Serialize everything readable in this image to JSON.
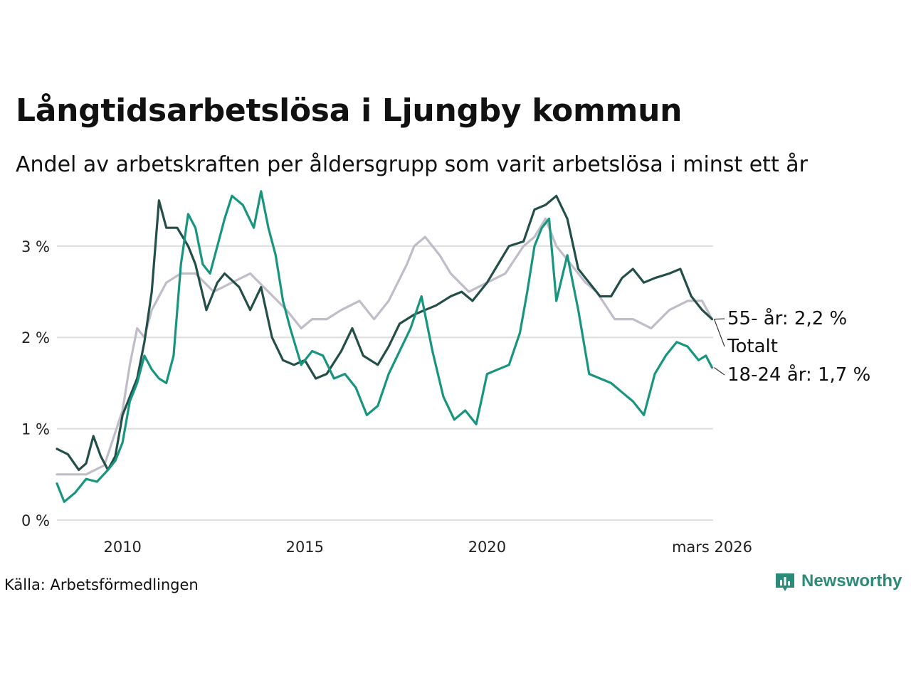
{
  "title": "Långtidsarbetslösa i Ljungby kommun",
  "subtitle": "Andel av arbetskraften per åldersgrupp som varit arbetslösa i minst ett år",
  "source": "Källa: Arbetsförmedlingen",
  "brand": {
    "name": "Newsworthy",
    "icon": "bar-chart-logo-icon",
    "color": "#2a8c78"
  },
  "colors": {
    "Totalt": "#234f48",
    "55-": "#c0bcc8",
    "18-24": "#18957f",
    "grid": "#dddddd"
  },
  "chart_data": {
    "type": "line",
    "xlabel": "",
    "ylabel": "",
    "xlim": [
      2008.2,
      2026.2
    ],
    "ylim": [
      0,
      3.7
    ],
    "y_ticks": [
      {
        "value": 0,
        "label": "0 %"
      },
      {
        "value": 1,
        "label": "1 %"
      },
      {
        "value": 2,
        "label": "2 %"
      },
      {
        "value": 3,
        "label": "3 %"
      }
    ],
    "x_ticks": [
      {
        "value": 2010,
        "label": "2010"
      },
      {
        "value": 2015,
        "label": "2015"
      },
      {
        "value": 2020,
        "label": "2020"
      },
      {
        "value": 2026.17,
        "label": "mars 2026"
      }
    ],
    "grid": true,
    "series": [
      {
        "name": "55- år",
        "key": "55-",
        "end_label": "55- år: 2,2 %",
        "x": [
          2008.2,
          2009.0,
          2009.5,
          2010.0,
          2010.2,
          2010.4,
          2010.6,
          2010.8,
          2011.2,
          2011.6,
          2012.0,
          2012.5,
          2013.0,
          2013.5,
          2014.0,
          2014.5,
          2014.9,
          2015.2,
          2015.6,
          2016.0,
          2016.5,
          2016.9,
          2017.3,
          2017.8,
          2018.0,
          2018.3,
          2018.7,
          2019.0,
          2019.5,
          2020.0,
          2020.5,
          2021.0,
          2021.3,
          2021.6,
          2021.9,
          2022.3,
          2022.7,
          2023.0,
          2023.5,
          2024.0,
          2024.5,
          2025.0,
          2025.5,
          2025.9,
          2026.17
        ],
        "y": [
          0.5,
          0.5,
          0.6,
          1.2,
          1.7,
          2.1,
          2.0,
          2.3,
          2.6,
          2.7,
          2.7,
          2.5,
          2.6,
          2.7,
          2.5,
          2.3,
          2.1,
          2.2,
          2.2,
          2.3,
          2.4,
          2.2,
          2.4,
          2.8,
          3.0,
          3.1,
          2.9,
          2.7,
          2.5,
          2.6,
          2.7,
          3.0,
          3.1,
          3.3,
          3.0,
          2.8,
          2.6,
          2.5,
          2.2,
          2.2,
          2.1,
          2.3,
          2.4,
          2.4,
          2.2
        ]
      },
      {
        "name": "Totalt",
        "key": "Totalt",
        "end_label": "Totalt",
        "x": [
          2008.2,
          2008.5,
          2008.8,
          2009.0,
          2009.2,
          2009.4,
          2009.6,
          2009.8,
          2010.0,
          2010.2,
          2010.4,
          2010.6,
          2010.8,
          2011.0,
          2011.2,
          2011.5,
          2011.8,
          2012.0,
          2012.3,
          2012.6,
          2012.8,
          2013.2,
          2013.5,
          2013.8,
          2014.1,
          2014.4,
          2014.7,
          2015.0,
          2015.3,
          2015.6,
          2016.0,
          2016.3,
          2016.6,
          2017.0,
          2017.3,
          2017.6,
          2018.0,
          2018.3,
          2018.6,
          2019.0,
          2019.3,
          2019.6,
          2020.0,
          2020.3,
          2020.6,
          2021.0,
          2021.3,
          2021.6,
          2021.9,
          2022.2,
          2022.5,
          2022.8,
          2023.1,
          2023.4,
          2023.7,
          2024.0,
          2024.3,
          2024.6,
          2025.0,
          2025.3,
          2025.6,
          2025.9,
          2026.17
        ],
        "y": [
          0.78,
          0.72,
          0.55,
          0.62,
          0.92,
          0.7,
          0.55,
          0.7,
          1.15,
          1.35,
          1.55,
          1.95,
          2.5,
          3.5,
          3.2,
          3.2,
          3.0,
          2.8,
          2.3,
          2.6,
          2.7,
          2.55,
          2.3,
          2.55,
          2.0,
          1.75,
          1.7,
          1.75,
          1.55,
          1.6,
          1.85,
          2.1,
          1.8,
          1.7,
          1.9,
          2.15,
          2.25,
          2.3,
          2.35,
          2.45,
          2.5,
          2.4,
          2.6,
          2.8,
          3.0,
          3.05,
          3.4,
          3.45,
          3.55,
          3.3,
          2.75,
          2.6,
          2.45,
          2.45,
          2.65,
          2.75,
          2.6,
          2.65,
          2.7,
          2.75,
          2.45,
          2.3,
          2.2
        ]
      },
      {
        "name": "18-24 år",
        "key": "18-24",
        "end_label": "18-24 år: 1,7 %",
        "x": [
          2008.2,
          2008.4,
          2008.7,
          2009.0,
          2009.3,
          2009.6,
          2009.8,
          2010.0,
          2010.2,
          2010.4,
          2010.6,
          2010.8,
          2011.0,
          2011.2,
          2011.4,
          2011.6,
          2011.8,
          2012.0,
          2012.2,
          2012.4,
          2012.6,
          2012.8,
          2013.0,
          2013.3,
          2013.6,
          2013.8,
          2014.0,
          2014.2,
          2014.4,
          2014.6,
          2014.9,
          2015.2,
          2015.5,
          2015.8,
          2016.1,
          2016.4,
          2016.7,
          2017.0,
          2017.3,
          2017.6,
          2017.9,
          2018.2,
          2018.5,
          2018.8,
          2019.1,
          2019.4,
          2019.7,
          2020.0,
          2020.3,
          2020.6,
          2020.9,
          2021.1,
          2021.3,
          2021.5,
          2021.7,
          2021.9,
          2022.2,
          2022.5,
          2022.8,
          2023.1,
          2023.4,
          2023.7,
          2024.0,
          2024.3,
          2024.6,
          2024.9,
          2025.2,
          2025.5,
          2025.8,
          2026.0,
          2026.17
        ],
        "y": [
          0.4,
          0.2,
          0.3,
          0.45,
          0.42,
          0.55,
          0.65,
          0.85,
          1.3,
          1.5,
          1.8,
          1.65,
          1.55,
          1.5,
          1.8,
          2.8,
          3.35,
          3.2,
          2.8,
          2.7,
          3.0,
          3.3,
          3.55,
          3.45,
          3.2,
          3.6,
          3.2,
          2.9,
          2.4,
          2.1,
          1.7,
          1.85,
          1.8,
          1.55,
          1.6,
          1.45,
          1.15,
          1.25,
          1.6,
          1.85,
          2.1,
          2.45,
          1.85,
          1.35,
          1.1,
          1.2,
          1.05,
          1.6,
          1.65,
          1.7,
          2.05,
          2.5,
          3.0,
          3.2,
          3.3,
          2.4,
          2.9,
          2.3,
          1.6,
          1.55,
          1.5,
          1.4,
          1.3,
          1.15,
          1.6,
          1.8,
          1.95,
          1.9,
          1.75,
          1.8,
          1.67
        ]
      }
    ]
  }
}
